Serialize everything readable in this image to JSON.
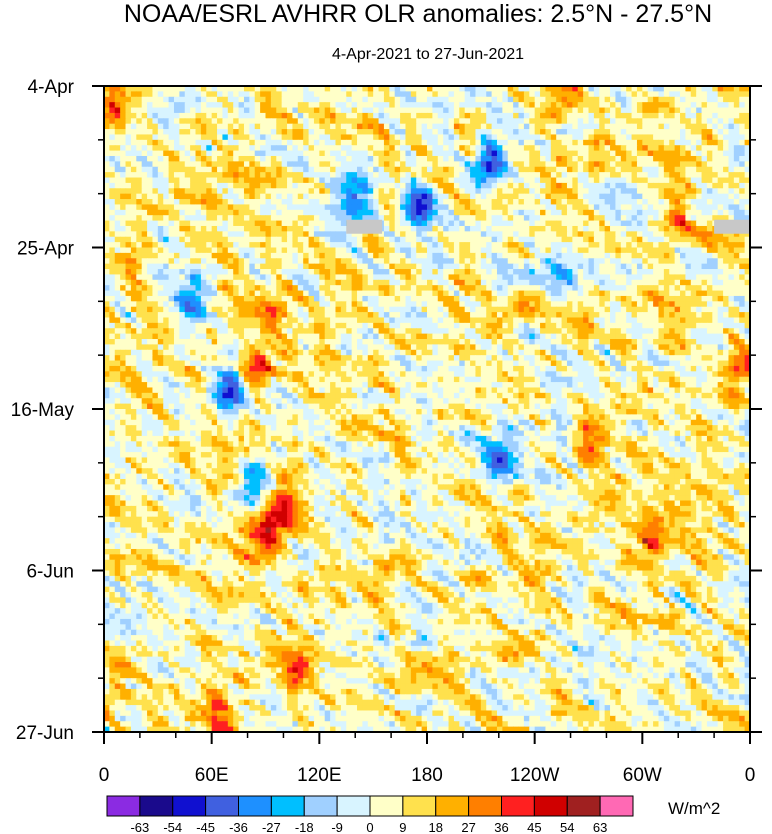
{
  "chart_data": {
    "type": "heatmap",
    "title": "NOAA/ESRL AVHRR OLR anomalies: 2.5°N - 27.5°N",
    "subtitle": "4-Apr-2021 to 27-Jun-2021",
    "x_ticks": [
      {
        "lon": 0,
        "label": "0"
      },
      {
        "lon": 60,
        "label": "60E"
      },
      {
        "lon": 120,
        "label": "120E"
      },
      {
        "lon": 180,
        "label": "180"
      },
      {
        "lon": 240,
        "label": "120W"
      },
      {
        "lon": 300,
        "label": "60W"
      },
      {
        "lon": 360,
        "label": "0"
      }
    ],
    "x_range": [
      0,
      360
    ],
    "y_ticks": [
      {
        "day": 0,
        "label": "4-Apr"
      },
      {
        "day": 21,
        "label": "25-Apr"
      },
      {
        "day": 42,
        "label": "16-May"
      },
      {
        "day": 63,
        "label": "6-Jun"
      },
      {
        "day": 84,
        "label": "27-Jun"
      }
    ],
    "y_range_days": [
      0,
      84
    ],
    "minor_y_ticks_days": [
      7,
      14,
      28,
      35,
      49,
      56,
      70,
      77
    ],
    "minor_x_ticks_lon": [
      20,
      40,
      80,
      100,
      140,
      160,
      200,
      220,
      260,
      280,
      320,
      340
    ],
    "colorbar": {
      "unit_label": "W/m^2",
      "levels": [
        "-63",
        "-54",
        "-45",
        "-36",
        "-27",
        "-18",
        "-9",
        "0",
        "9",
        "18",
        "27",
        "36",
        "45",
        "54",
        "63"
      ],
      "colors": [
        "#8b2be2",
        "#1a0a8c",
        "#1010d0",
        "#4060e0",
        "#1e90ff",
        "#00bfff",
        "#a0d0ff",
        "#d8f4ff",
        "#ffffc8",
        "#ffe14d",
        "#ffb000",
        "#ff7f00",
        "#ff2020",
        "#d00000",
        "#a02020",
        "#ff69b4"
      ]
    },
    "features": [
      {
        "name": "negative-anomaly",
        "lon": 70,
        "day": 40,
        "value": -63
      },
      {
        "name": "negative-anomaly",
        "lon": 138,
        "day": 14,
        "value": -54
      },
      {
        "name": "negative-anomaly",
        "lon": 175,
        "day": 15,
        "value": -54
      },
      {
        "name": "negative-anomaly",
        "lon": 215,
        "day": 9,
        "value": -54
      },
      {
        "name": "negative-anomaly",
        "lon": 220,
        "day": 48,
        "value": -54
      },
      {
        "name": "negative-anomaly",
        "lon": 85,
        "day": 52,
        "value": -45
      },
      {
        "name": "negative-anomaly",
        "lon": 48,
        "day": 28,
        "value": -45
      },
      {
        "name": "negative-anomaly",
        "lon": 255,
        "day": 23,
        "value": -36
      },
      {
        "name": "positive-anomaly",
        "lon": 90,
        "day": 59,
        "value": 45
      },
      {
        "name": "positive-anomaly",
        "lon": 100,
        "day": 55,
        "value": 36
      },
      {
        "name": "positive-anomaly",
        "lon": 85,
        "day": 37,
        "value": 36
      },
      {
        "name": "positive-anomaly",
        "lon": 65,
        "day": 83,
        "value": 45
      },
      {
        "name": "positive-anomaly",
        "lon": 255,
        "day": 1,
        "value": 45
      },
      {
        "name": "positive-anomaly",
        "lon": 270,
        "day": 46,
        "value": 36
      },
      {
        "name": "positive-anomaly",
        "lon": 305,
        "day": 59,
        "value": 36
      },
      {
        "name": "positive-anomaly",
        "lon": 110,
        "day": 75,
        "value": 36
      },
      {
        "name": "positive-anomaly",
        "lon": 355,
        "day": 36,
        "value": 27
      },
      {
        "name": "positive-anomaly",
        "lon": 95,
        "day": 29,
        "value": 27
      },
      {
        "name": "positive-anomaly",
        "lon": 320,
        "day": 17,
        "value": 27
      },
      {
        "name": "positive-anomaly",
        "lon": 5,
        "day": 2,
        "value": 27
      }
    ],
    "missing_data": [
      {
        "lon_start": 135,
        "lon_end": 155,
        "day": 18.3
      },
      {
        "lon_start": 340,
        "lon_end": 360,
        "day": 18.3
      }
    ]
  }
}
